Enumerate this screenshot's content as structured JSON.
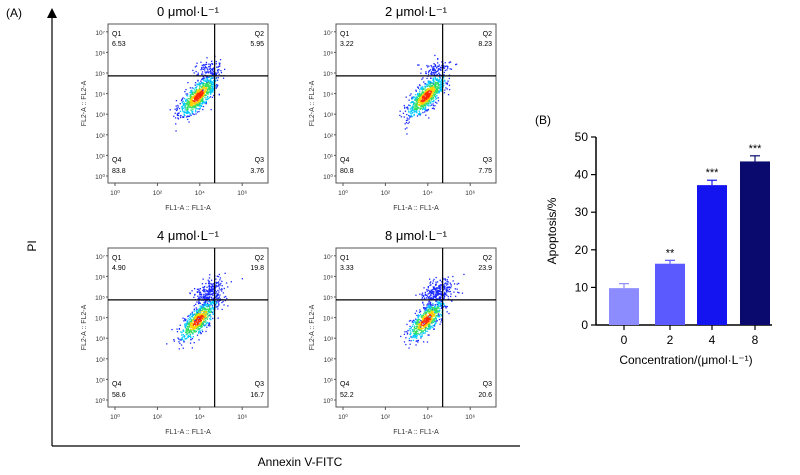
{
  "panel_a_label": "(A)",
  "panel_b_label": "(B)",
  "outer_ylabel": "PI",
  "outer_xlabel": "Annexin V-FITC",
  "chart_data": [
    {
      "type": "scatter",
      "title": "0 μmol·L⁻¹",
      "xlabel": "FL1-A :: FL1-A",
      "ylabel": "FL2-A :: FL2-A",
      "x_scale": "log",
      "y_scale": "log",
      "x_ticks": [
        "10⁰",
        "10²",
        "10⁴",
        "10⁶"
      ],
      "y_ticks": [
        "10⁰",
        "10¹",
        "10²",
        "10³",
        "10⁴",
        "10⁵",
        "10⁶",
        "10⁷"
      ],
      "gate_x_log": 4.7,
      "gate_y_log": 4.86,
      "quadrants": {
        "Q1": "6.53",
        "Q2": "5.95",
        "Q3": "3.76",
        "Q4": "83.8"
      },
      "upper_cluster": 0.12
    },
    {
      "type": "scatter",
      "title": "2 μmol·L⁻¹",
      "xlabel": "FL1-A :: FL1-A",
      "ylabel": "FL2-A :: FL2-A",
      "x_scale": "log",
      "y_scale": "log",
      "x_ticks": [
        "10⁰",
        "10²",
        "10⁴",
        "10⁶"
      ],
      "y_ticks": [
        "10⁰",
        "10¹",
        "10²",
        "10³",
        "10⁴",
        "10⁵",
        "10⁶",
        "10⁷"
      ],
      "gate_x_log": 4.7,
      "gate_y_log": 4.86,
      "quadrants": {
        "Q1": "3.22",
        "Q2": "8.23",
        "Q3": "7.75",
        "Q4": "80.8"
      },
      "upper_cluster": 0.12
    },
    {
      "type": "scatter",
      "title": "4 μmol·L⁻¹",
      "xlabel": "FL1-A :: FL1-A",
      "ylabel": "FL2-A :: FL2-A",
      "x_scale": "log",
      "y_scale": "log",
      "x_ticks": [
        "10⁰",
        "10²",
        "10⁴",
        "10⁶"
      ],
      "y_ticks": [
        "10⁰",
        "10¹",
        "10²",
        "10³",
        "10⁴",
        "10⁵",
        "10⁶",
        "10⁷"
      ],
      "gate_x_log": 4.7,
      "gate_y_log": 4.86,
      "quadrants": {
        "Q1": "4.90",
        "Q2": "19.8",
        "Q3": "16.7",
        "Q4": "58.6"
      },
      "upper_cluster": 0.25
    },
    {
      "type": "scatter",
      "title": "8 μmol·L⁻¹",
      "xlabel": "FL1-A :: FL1-A",
      "ylabel": "FL2-A :: FL2-A",
      "x_scale": "log",
      "y_scale": "log",
      "x_ticks": [
        "10⁰",
        "10²",
        "10⁴",
        "10⁶"
      ],
      "y_ticks": [
        "10⁰",
        "10¹",
        "10²",
        "10³",
        "10⁴",
        "10⁵",
        "10⁶",
        "10⁷"
      ],
      "gate_x_log": 4.7,
      "gate_y_log": 4.86,
      "quadrants": {
        "Q1": "3.33",
        "Q2": "23.9",
        "Q3": "20.6",
        "Q4": "52.2"
      },
      "upper_cluster": 0.3
    },
    {
      "type": "bar",
      "title": "",
      "categories": [
        "0",
        "2",
        "4",
        "8"
      ],
      "values": [
        9.8,
        16.3,
        37.2,
        43.5
      ],
      "errors": [
        1.2,
        0.9,
        1.3,
        1.5
      ],
      "significance": [
        "",
        "**",
        "***",
        "***"
      ],
      "colors": [
        "#8c8cff",
        "#5a5aff",
        "#1414f0",
        "#0a0a6e"
      ],
      "xlabel": "Concentration/(μmol·L⁻¹)",
      "ylabel": "Apoptosis/%",
      "ylim": [
        0,
        50
      ],
      "y_ticks": [
        "0",
        "10",
        "20",
        "30",
        "40",
        "50"
      ],
      "grid": false
    }
  ]
}
